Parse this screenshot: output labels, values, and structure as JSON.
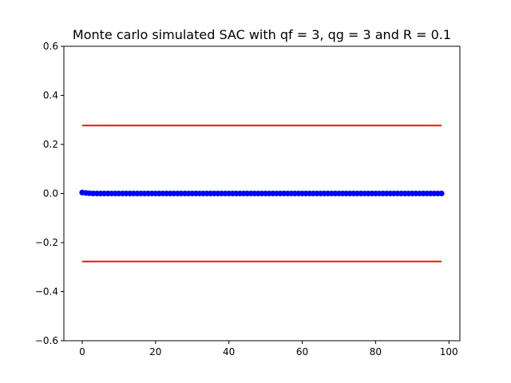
{
  "chart_data": {
    "type": "scatter",
    "title": "Monte carlo simulated SAC with qf = 3, qg = 3 and R = 0.1",
    "xlabel": "",
    "ylabel": "",
    "xlim": [
      -5,
      103
    ],
    "ylim": [
      -0.6,
      0.6
    ],
    "xticks": [
      0,
      20,
      40,
      60,
      80,
      100
    ],
    "xtick_labels": [
      "0",
      "20",
      "40",
      "60",
      "80",
      "100"
    ],
    "yticks": [
      -0.6,
      -0.4,
      -0.2,
      0.0,
      0.2,
      0.4,
      0.6
    ],
    "ytick_labels": [
      "−0.6",
      "−0.4",
      "−0.2",
      "0.0",
      "0.2",
      "0.4",
      "0.6"
    ],
    "grid": false,
    "series": [
      {
        "kind": "scatter",
        "color": "#0000ff",
        "x_start": 0,
        "x_end": 98,
        "values": [
          0.004,
          0.002,
          0.001,
          0.0,
          0.0,
          0.0,
          0.0,
          0.0,
          0.0,
          0.0,
          0.0,
          0.0,
          0.0,
          0.0,
          0.0,
          0.0,
          0.0,
          0.0,
          0.0,
          0.0,
          0.0,
          0.0,
          0.0,
          0.0,
          0.0,
          0.0,
          0.0,
          0.0,
          0.0,
          0.0,
          0.0,
          0.0,
          0.0,
          0.0,
          0.0,
          0.0,
          0.0,
          0.0,
          0.0,
          0.0,
          0.0,
          0.0,
          0.0,
          0.0,
          0.0,
          0.0,
          0.0,
          0.0,
          0.0,
          0.0,
          0.0,
          0.0,
          0.0,
          0.0,
          0.0,
          0.0,
          0.0,
          0.0,
          0.0,
          0.0,
          0.0,
          0.0,
          0.0,
          0.0,
          0.0,
          0.0,
          0.0,
          0.0,
          0.0,
          0.0,
          0.0,
          0.0,
          0.0,
          0.0,
          0.0,
          0.0,
          0.0,
          0.0,
          0.0,
          0.0,
          0.0,
          0.0,
          0.0,
          0.0,
          0.0,
          0.0,
          0.0,
          0.0,
          0.0,
          0.0,
          0.0,
          0.0,
          0.0,
          0.0,
          0.0,
          0.0,
          0.0,
          0.0,
          0.0
        ]
      },
      {
        "kind": "line",
        "color": "#ff0000",
        "x": [
          0,
          98
        ],
        "values": [
          0.277,
          0.277
        ]
      },
      {
        "kind": "line",
        "color": "#ff0000",
        "x": [
          0,
          98
        ],
        "values": [
          -0.277,
          -0.277
        ]
      }
    ]
  }
}
